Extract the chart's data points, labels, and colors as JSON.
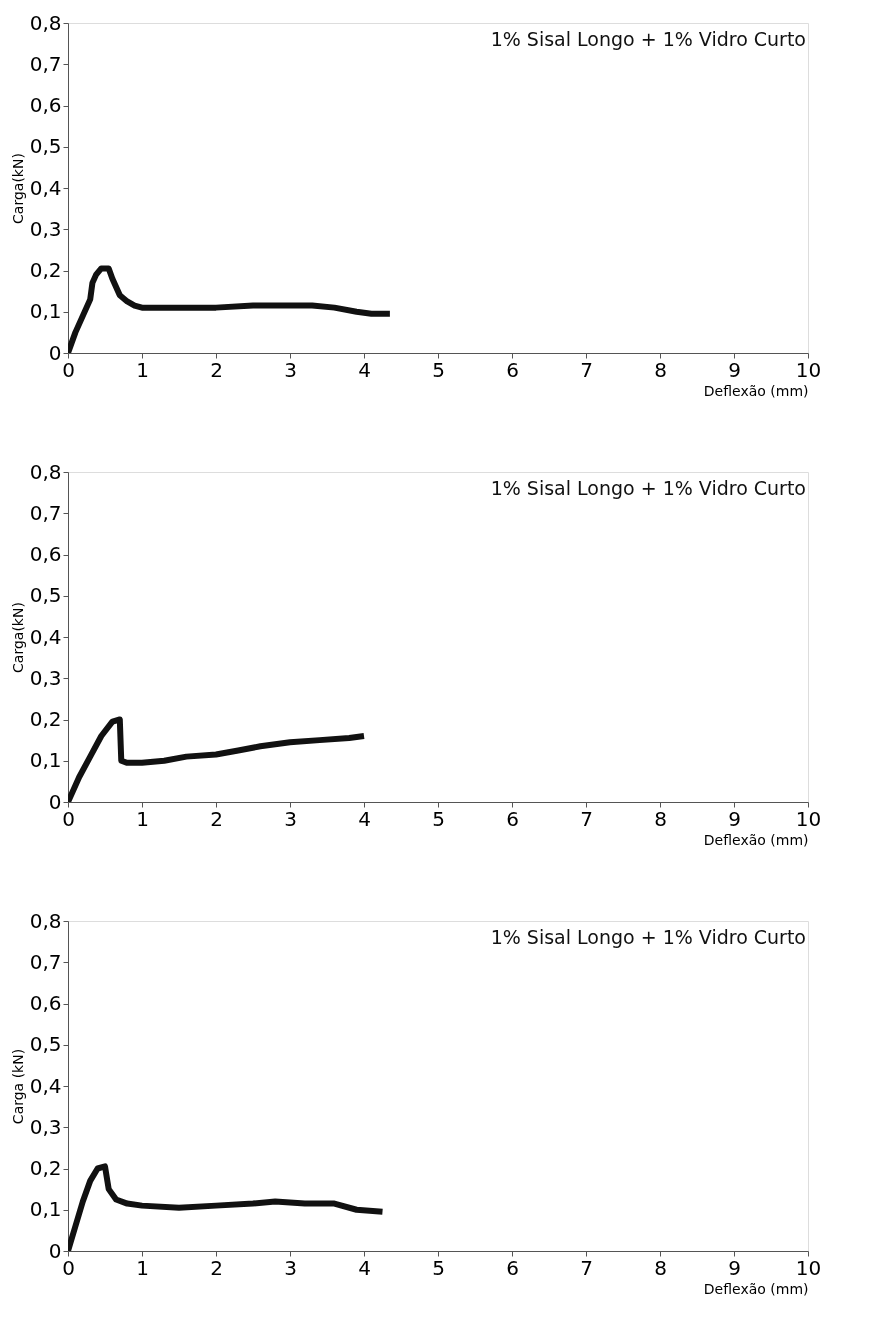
{
  "chart_data": [
    {
      "type": "line",
      "xlabel": "Deflexão (mm)",
      "ylabel": "Carga(kN)",
      "annotations": [
        "1% Sisal Longo + 1% Vidro Curto"
      ],
      "xlim": [
        0,
        10
      ],
      "xticks": [
        0,
        1,
        2,
        3,
        4,
        5,
        6,
        7,
        8,
        9,
        10
      ],
      "ylim": [
        0,
        0.8
      ],
      "yticks": [
        {
          "value": 0,
          "label": "0"
        },
        {
          "value": 0.1,
          "label": "0,1"
        },
        {
          "value": 0.2,
          "label": "0,2"
        },
        {
          "value": 0.3,
          "label": "0,3"
        },
        {
          "value": 0.4,
          "label": "0,4"
        },
        {
          "value": 0.5,
          "label": "0,5"
        },
        {
          "value": 0.6,
          "label": "0,6"
        },
        {
          "value": 0.7,
          "label": "0,7"
        },
        {
          "value": 0.8,
          "label": "0,8"
        }
      ],
      "grid": false,
      "line_style": "solid",
      "series": [
        {
          "color": "#111111",
          "x": [
            0,
            0.1,
            0.2,
            0.3,
            0.33,
            0.38,
            0.45,
            0.55,
            0.6,
            0.7,
            0.8,
            0.9,
            1.0,
            1.5,
            2.0,
            2.5,
            3.0,
            3.3,
            3.6,
            3.9,
            4.1,
            4.35
          ],
          "values": [
            0,
            0.05,
            0.09,
            0.13,
            0.17,
            0.19,
            0.205,
            0.205,
            0.18,
            0.14,
            0.125,
            0.115,
            0.11,
            0.11,
            0.11,
            0.115,
            0.115,
            0.115,
            0.11,
            0.1,
            0.095,
            0.095
          ]
        }
      ]
    },
    {
      "type": "line",
      "xlabel": "Deflexão (mm)",
      "ylabel": "Carga(kN)",
      "annotations": [
        "1% Sisal Longo + 1% Vidro Curto"
      ],
      "xlim": [
        0,
        10
      ],
      "xticks": [
        0,
        1,
        2,
        3,
        4,
        5,
        6,
        7,
        8,
        9,
        10
      ],
      "ylim": [
        0,
        0.8
      ],
      "yticks": [
        {
          "value": 0,
          "label": "0"
        },
        {
          "value": 0.1,
          "label": "0,1"
        },
        {
          "value": 0.2,
          "label": "0,2"
        },
        {
          "value": 0.3,
          "label": "0,3"
        },
        {
          "value": 0.4,
          "label": "0,4"
        },
        {
          "value": 0.5,
          "label": "0,5"
        },
        {
          "value": 0.6,
          "label": "0,6"
        },
        {
          "value": 0.7,
          "label": "0,7"
        },
        {
          "value": 0.8,
          "label": "0,8"
        }
      ],
      "grid": false,
      "line_style": "solid",
      "series": [
        {
          "color": "#111111",
          "x": [
            0,
            0.15,
            0.3,
            0.45,
            0.6,
            0.7,
            0.72,
            0.8,
            1.0,
            1.3,
            1.6,
            2.0,
            2.3,
            2.6,
            3.0,
            3.4,
            3.8,
            4.0
          ],
          "values": [
            0,
            0.06,
            0.11,
            0.16,
            0.195,
            0.2,
            0.1,
            0.095,
            0.095,
            0.1,
            0.11,
            0.115,
            0.125,
            0.135,
            0.145,
            0.15,
            0.155,
            0.16
          ]
        }
      ]
    },
    {
      "type": "line",
      "xlabel": "Deflexão (mm)",
      "ylabel": "Carga (kN)",
      "annotations": [
        "1% Sisal Longo + 1% Vidro Curto"
      ],
      "xlim": [
        0,
        10
      ],
      "xticks": [
        0,
        1,
        2,
        3,
        4,
        5,
        6,
        7,
        8,
        9,
        10
      ],
      "ylim": [
        0,
        0.8
      ],
      "yticks": [
        {
          "value": 0,
          "label": "0"
        },
        {
          "value": 0.1,
          "label": "0,1"
        },
        {
          "value": 0.2,
          "label": "0,2"
        },
        {
          "value": 0.3,
          "label": "0,3"
        },
        {
          "value": 0.4,
          "label": "0,4"
        },
        {
          "value": 0.5,
          "label": "0,5"
        },
        {
          "value": 0.6,
          "label": "0,6"
        },
        {
          "value": 0.7,
          "label": "0,7"
        },
        {
          "value": 0.8,
          "label": "0,8"
        }
      ],
      "grid": false,
      "line_style": "solid",
      "series": [
        {
          "color": "#111111",
          "x": [
            0,
            0.1,
            0.2,
            0.3,
            0.4,
            0.5,
            0.55,
            0.65,
            0.8,
            1.0,
            1.5,
            2.0,
            2.5,
            2.8,
            3.2,
            3.6,
            3.9,
            4.25
          ],
          "values": [
            0,
            0.06,
            0.12,
            0.17,
            0.2,
            0.205,
            0.15,
            0.125,
            0.115,
            0.11,
            0.105,
            0.11,
            0.115,
            0.12,
            0.115,
            0.115,
            0.1,
            0.095
          ]
        }
      ]
    }
  ]
}
